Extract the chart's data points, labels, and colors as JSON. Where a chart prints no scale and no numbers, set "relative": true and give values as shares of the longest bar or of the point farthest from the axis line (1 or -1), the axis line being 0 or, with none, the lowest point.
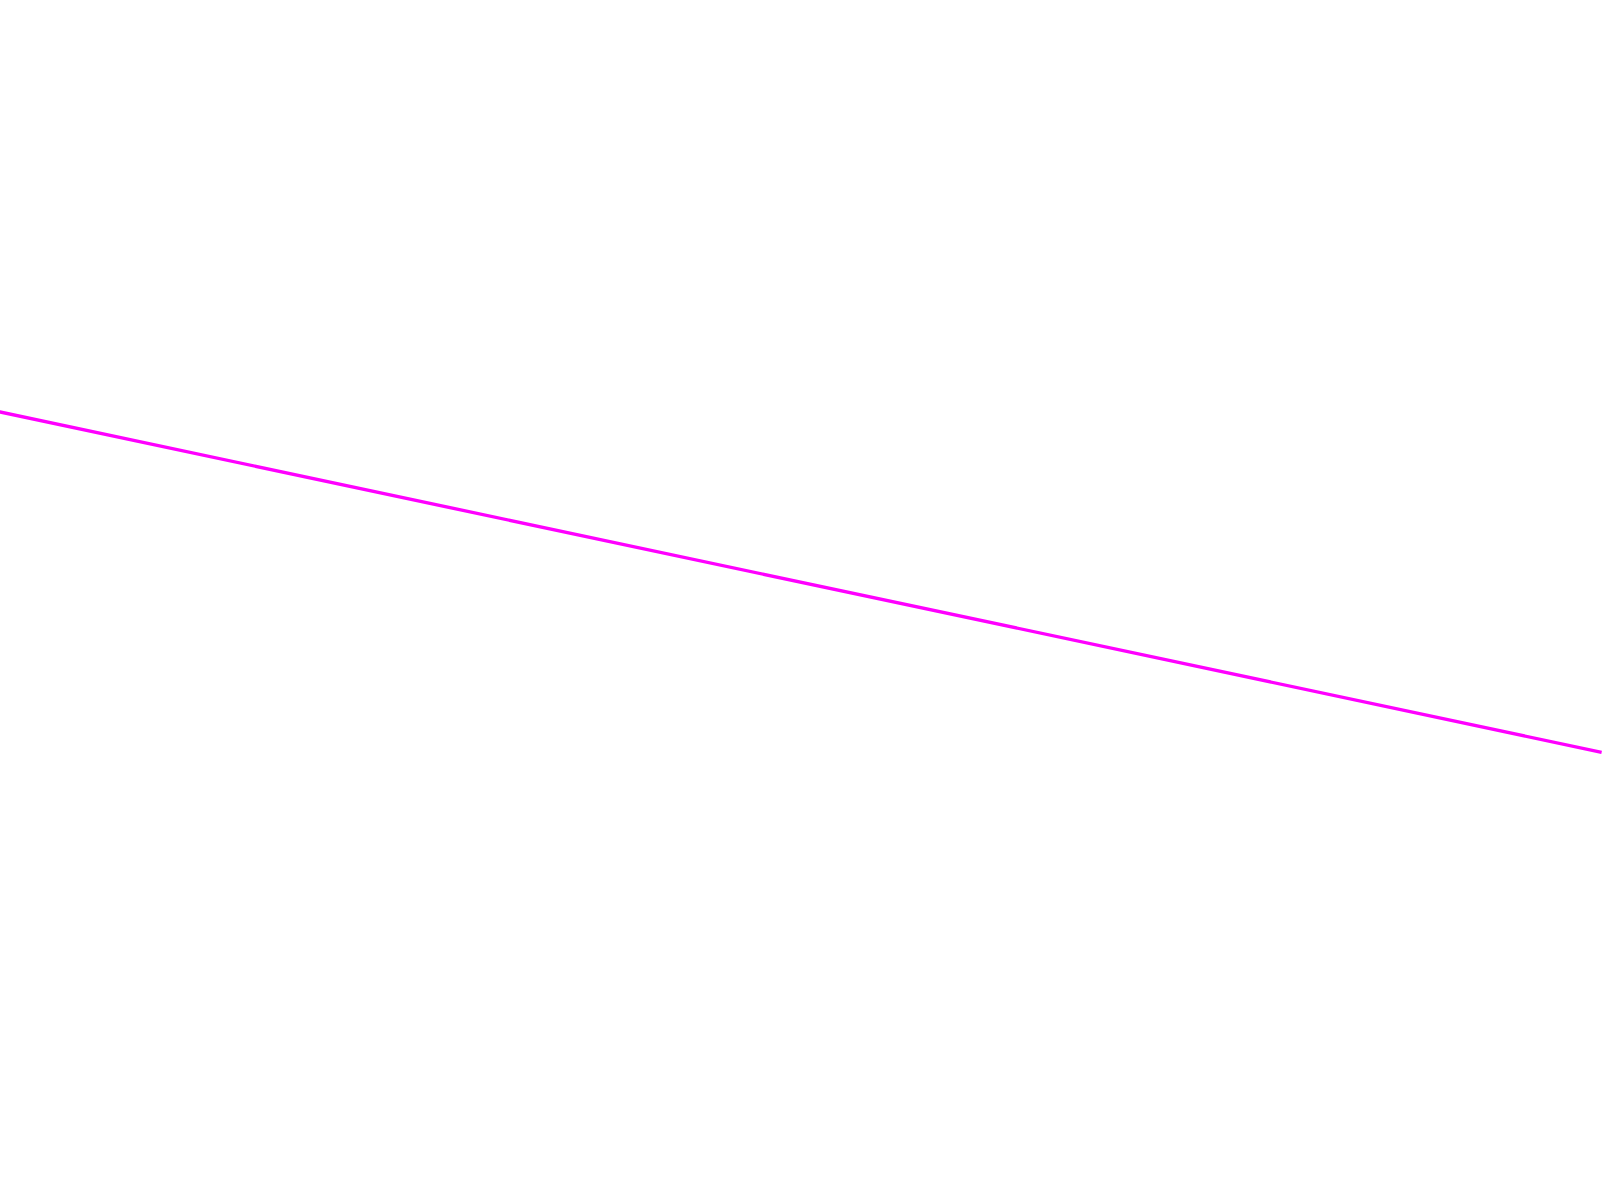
{
  "chart_data": {
    "type": "line",
    "relative": true,
    "categories": [
      null,
      null
    ],
    "series": [
      {
        "color": "#ff00ff",
        "values": [
          1,
          0
        ]
      }
    ]
  }
}
